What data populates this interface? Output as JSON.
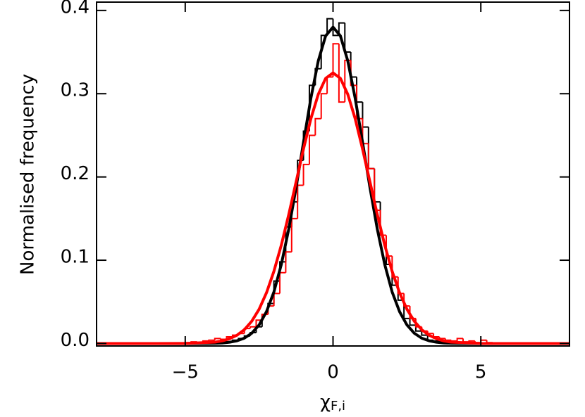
{
  "chart_data": {
    "type": "histogram",
    "xlabel": "χ",
    "xlabel_sub": "F,i",
    "ylabel": "Normalised frequency",
    "xlim": [
      -8,
      8
    ],
    "ylim": [
      -0.003,
      0.41
    ],
    "xticks": [
      {
        "value": -5,
        "label": "−5"
      },
      0,
      5
    ],
    "yticks": [
      {
        "value": 0,
        "label": "0.0"
      },
      0.1,
      0.2,
      0.3,
      0.4
    ],
    "bins": [
      -6,
      -5.8,
      -5.6,
      -5.4,
      -5.2,
      -5,
      -4.8,
      -4.6,
      -4.4,
      -4.2,
      -4,
      -3.8,
      -3.6,
      -3.4,
      -3.2,
      -3,
      -2.8,
      -2.6,
      -2.4,
      -2.2,
      -2,
      -1.8,
      -1.6,
      -1.4,
      -1.2,
      -1,
      -0.8,
      -0.6,
      -0.4,
      -0.2,
      0,
      0.2,
      0.4,
      0.6,
      0.8,
      1,
      1.2,
      1.4,
      1.6,
      1.8,
      2,
      2.2,
      2.4,
      2.6,
      2.8,
      3,
      3.2,
      3.4,
      3.6,
      3.8,
      4,
      4.2,
      4.4,
      4.6,
      4.8,
      5,
      5.2,
      5.4,
      5.6,
      5.8,
      6
    ],
    "series": [
      {
        "color": "#000000",
        "values": [
          0,
          0,
          0,
          0,
          0,
          0,
          0,
          0,
          0,
          0,
          0.001,
          0.002,
          0.002,
          0.004,
          0.006,
          0.009,
          0.013,
          0.02,
          0.035,
          0.048,
          0.075,
          0.098,
          0.14,
          0.17,
          0.22,
          0.255,
          0.31,
          0.33,
          0.37,
          0.39,
          0.37,
          0.385,
          0.35,
          0.32,
          0.29,
          0.26,
          0.21,
          0.17,
          0.13,
          0.095,
          0.07,
          0.052,
          0.03,
          0.022,
          0.015,
          0.01,
          0.004,
          0.003,
          0.002,
          0.001,
          0,
          0,
          0,
          0,
          0,
          0,
          0,
          0,
          0,
          0
        ]
      },
      {
        "color": "#ff0000",
        "values": [
          0,
          0,
          0,
          0,
          0,
          0.001,
          0.002,
          0.001,
          0.003,
          0.004,
          0.006,
          0.005,
          0.008,
          0.01,
          0.012,
          0.018,
          0.02,
          0.028,
          0.035,
          0.045,
          0.06,
          0.085,
          0.11,
          0.15,
          0.19,
          0.215,
          0.25,
          0.27,
          0.3,
          0.32,
          0.36,
          0.29,
          0.34,
          0.31,
          0.27,
          0.24,
          0.21,
          0.16,
          0.13,
          0.105,
          0.08,
          0.06,
          0.045,
          0.03,
          0.02,
          0.015,
          0.012,
          0.008,
          0.006,
          0.004,
          0.003,
          0.006,
          0.002,
          0.003,
          0.001,
          0.004,
          0.001,
          0,
          0,
          0
        ]
      }
    ],
    "fits": {
      "x": [
        -8,
        -7,
        -6,
        -5,
        -4,
        -3.75,
        -3.5,
        -3.25,
        -3,
        -2.75,
        -2.5,
        -2.25,
        -2,
        -1.75,
        -1.5,
        -1.25,
        -1,
        -0.75,
        -0.5,
        -0.25,
        0,
        0.25,
        0.5,
        0.75,
        1,
        1.25,
        1.5,
        1.75,
        2,
        2.25,
        2.5,
        2.75,
        3,
        3.25,
        3.5,
        3.75,
        4,
        5,
        6,
        7,
        8
      ],
      "series": [
        {
          "color": "#000000",
          "values": [
            0,
            0,
            0,
            0,
            0.0003,
            0.0006,
            0.0015,
            0.0032,
            0.0064,
            0.0123,
            0.0223,
            0.0383,
            0.0619,
            0.0948,
            0.137,
            0.1871,
            0.2414,
            0.2944,
            0.3393,
            0.3694,
            0.38,
            0.3694,
            0.3393,
            0.2944,
            0.2414,
            0.1871,
            0.137,
            0.0948,
            0.0619,
            0.0383,
            0.0223,
            0.0123,
            0.0064,
            0.0032,
            0.0015,
            0.0006,
            0.0003,
            0,
            0,
            0,
            0
          ]
        },
        {
          "color": "#ff0000",
          "values": [
            0,
            0,
            0,
            0.0001,
            0.0016,
            0.0031,
            0.0057,
            0.0099,
            0.0166,
            0.0267,
            0.0412,
            0.061,
            0.0867,
            0.1181,
            0.1545,
            0.1939,
            0.2335,
            0.2699,
            0.2992,
            0.3184,
            0.325,
            0.3184,
            0.2992,
            0.2699,
            0.2335,
            0.1939,
            0.1545,
            0.1181,
            0.0867,
            0.061,
            0.0412,
            0.0267,
            0.0166,
            0.0099,
            0.0057,
            0.0031,
            0.0016,
            0.0001,
            0,
            0,
            0
          ]
        }
      ]
    }
  }
}
